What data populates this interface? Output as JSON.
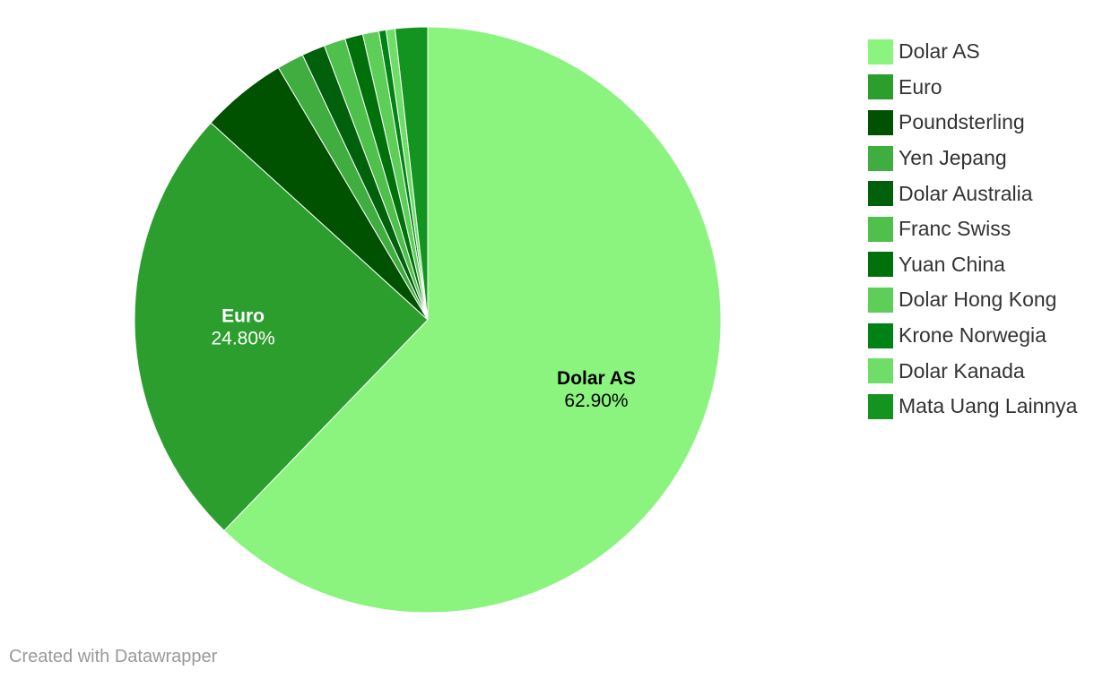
{
  "chart_data": {
    "type": "pie",
    "slices": [
      {
        "label": "Dolar AS",
        "value": 62.9,
        "display": "62.90%",
        "color": "#8af47f",
        "label_color": "#000000",
        "show_label": true
      },
      {
        "label": "Euro",
        "value": 24.8,
        "display": "24.80%",
        "color": "#2c9e2e",
        "label_color": "#ffffff",
        "show_label": true
      },
      {
        "label": "Poundsterling",
        "value": 4.8,
        "display": "4.80%",
        "color": "#005200",
        "label_color": "#ffffff",
        "show_label": false
      },
      {
        "label": "Yen Jepang",
        "value": 1.5,
        "display": "1.50%",
        "color": "#3fad3f",
        "label_color": "#ffffff",
        "show_label": false
      },
      {
        "label": "Dolar Australia",
        "value": 1.3,
        "display": "1.30%",
        "color": "#00600c",
        "label_color": "#ffffff",
        "show_label": false
      },
      {
        "label": "Franc Swiss",
        "value": 1.2,
        "display": "1.20%",
        "color": "#4fc04b",
        "label_color": "#ffffff",
        "show_label": false
      },
      {
        "label": "Yuan China",
        "value": 1.0,
        "display": "1.00%",
        "color": "#00700a",
        "label_color": "#ffffff",
        "show_label": false
      },
      {
        "label": "Dolar Hong Kong",
        "value": 0.9,
        "display": "0.90%",
        "color": "#5dcf58",
        "label_color": "#ffffff",
        "show_label": false
      },
      {
        "label": "Krone Norwegia",
        "value": 0.4,
        "display": "0.40%",
        "color": "#008214",
        "label_color": "#ffffff",
        "show_label": false
      },
      {
        "label": "Dolar Kanada",
        "value": 0.5,
        "display": "0.50%",
        "color": "#6fde68",
        "label_color": "#ffffff",
        "show_label": false
      },
      {
        "label": "Mata Uang Lainnya",
        "value": 1.8,
        "display": "1.80%",
        "color": "#13931f",
        "label_color": "#ffffff",
        "show_label": false
      }
    ],
    "legend_position": "top-right"
  },
  "footer": {
    "credit": "Created with Datawrapper"
  }
}
